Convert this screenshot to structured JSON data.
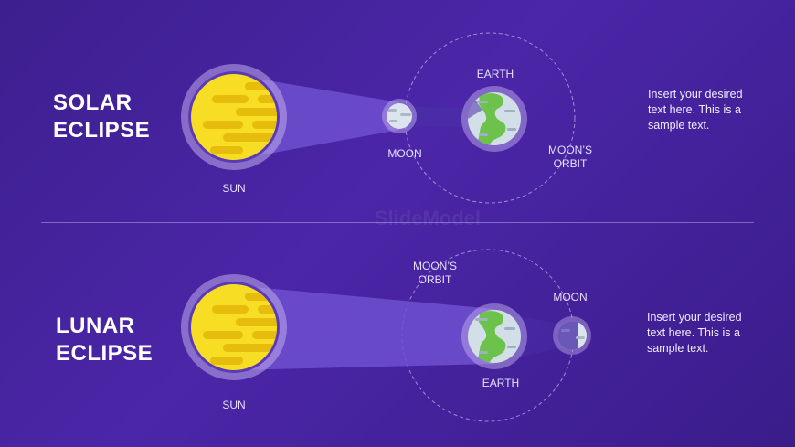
{
  "colors": {
    "background": "#4527a0",
    "sun": "#f7dd24",
    "sun_shade": "#e8c10e",
    "earth_water": "#cfdde6",
    "earth_land": "#6cc24a",
    "moon": "#d9e3ec",
    "beam": "#7a5ad6"
  },
  "solar": {
    "title_line1": "SOLAR",
    "title_line2": "ECLIPSE",
    "sun_label": "SUN",
    "moon_label": "MOON",
    "earth_label": "EARTH",
    "orbit_label_line1": "MOON’S",
    "orbit_label_line2": "ORBIT",
    "description": "Insert your desired text here. This is a sample text."
  },
  "lunar": {
    "title_line1": "LUNAR",
    "title_line2": "ECLIPSE",
    "sun_label": "SUN",
    "moon_label": "MOON",
    "earth_label": "EARTH",
    "orbit_label_line1": "MOON’S",
    "orbit_label_line2": "ORBIT",
    "description": "Insert your desired text here. This is a sample text."
  },
  "watermark": "SlideModel"
}
